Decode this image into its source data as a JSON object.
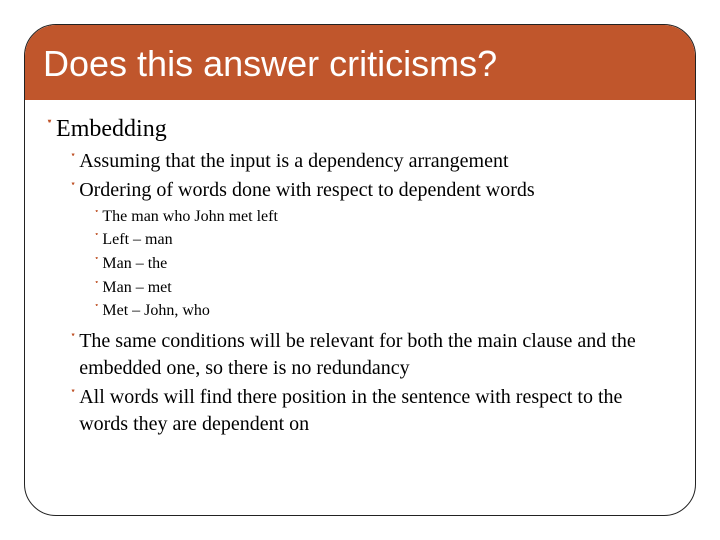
{
  "colors": {
    "accent": "#c0562c",
    "title_text": "#ffffff",
    "body_text": "#000000",
    "frame_border": "#222222",
    "background": "#ffffff"
  },
  "typography": {
    "title_family": "Arial",
    "body_family": "Times New Roman",
    "title_size_pt": 36,
    "lvl1_size_pt": 24,
    "lvl2_size_pt": 20,
    "lvl3_size_pt": 16
  },
  "bullet_glyph": "་",
  "title": "Does this answer criticisms?",
  "body": {
    "l1_a": "Embedding",
    "l2_a": "Assuming that the input is a dependency arrangement",
    "l2_b": "Ordering of words done with respect to dependent words",
    "l3_a": "The man who John met left",
    "l3_b": "Left – man",
    "l3_c": "Man – the",
    "l3_d": "Man – met",
    "l3_e": "Met – John, who",
    "l2_c": "The same conditions will be relevant for both the main clause and the embedded one, so there is no redundancy",
    "l2_d": "All words will find there position in the sentence with respect to the words they are dependent on"
  }
}
